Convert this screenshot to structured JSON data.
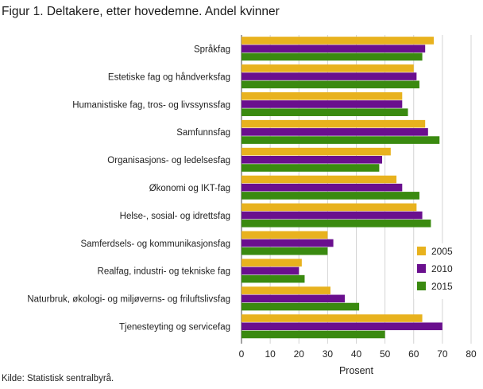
{
  "title": "Figur 1. Deltakere, etter hovedemne. Andel kvinner",
  "source": "Kilde: Statistisk sentralbyrå.",
  "chart_data": {
    "type": "bar",
    "orientation": "horizontal",
    "title": "Figur 1. Deltakere, etter hovedemne. Andel kvinner",
    "xlabel": "Prosent",
    "ylabel": "",
    "xlim": [
      0,
      80
    ],
    "xticks": [
      "0",
      "10",
      "20",
      "30",
      "40",
      "50",
      "60",
      "70",
      "80"
    ],
    "grid": "vertical",
    "legend_position": "bottom-right",
    "categories": [
      "Språkfag",
      "Estetiske fag og håndverksfag",
      "Humanistiske fag, tros- og livssynssfag",
      "Samfunnsfag",
      "Organisasjons- og ledelsesfag",
      "Økonomi og IKT-fag",
      "Helse-, sosial- og idrettsfag",
      "Samferdsels- og kommunikasjonsfag",
      "Realfag, industri- og tekniske fag",
      "Naturbruk, økologi- og miljøverns- og friluftslivsfag",
      "Tjenesteyting og servicefag"
    ],
    "series": [
      {
        "name": "2005",
        "color": "#e8b21e",
        "values": [
          67,
          60,
          56,
          64,
          52,
          54,
          61,
          30,
          21,
          31,
          63
        ]
      },
      {
        "name": "2010",
        "color": "#6a0f8e",
        "values": [
          64,
          61,
          56,
          65,
          49,
          56,
          63,
          32,
          20,
          36,
          70
        ]
      },
      {
        "name": "2015",
        "color": "#3a8a10",
        "values": [
          63,
          62,
          58,
          69,
          48,
          62,
          66,
          30,
          22,
          41,
          50
        ]
      }
    ]
  }
}
